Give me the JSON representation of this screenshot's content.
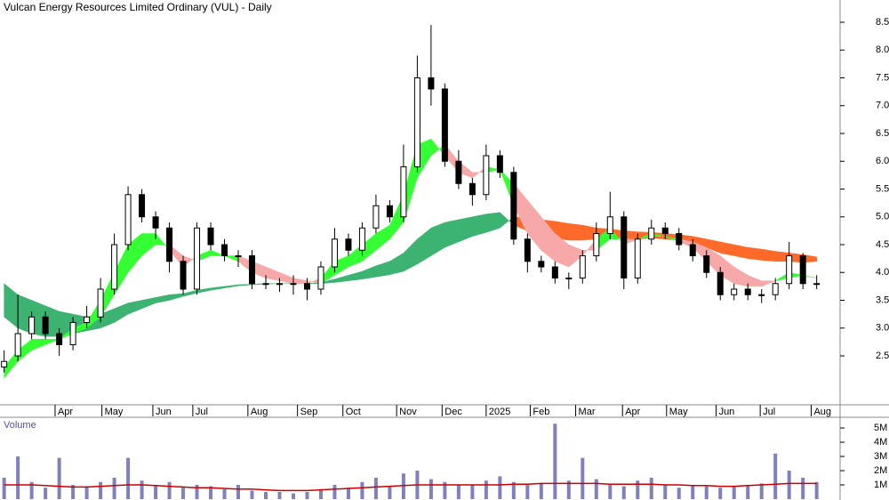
{
  "chart_data": [
    {
      "type": "candlestick",
      "title": "Vulcan Energy Resources Limited Ordinary (VUL) - Daily",
      "xlim": [
        -0.3,
        60.7
      ],
      "ylim": [
        1.62,
        8.9
      ],
      "xticks": [
        {
          "value": 3.7,
          "label": "Apr"
        },
        {
          "value": 7.1,
          "label": "May"
        },
        {
          "value": 10.8,
          "label": "Jun"
        },
        {
          "value": 13.7,
          "label": "Jul"
        },
        {
          "value": 17.7,
          "label": "Aug"
        },
        {
          "value": 21.3,
          "label": "Sep"
        },
        {
          "value": 24.6,
          "label": "Oct"
        },
        {
          "value": 28.5,
          "label": "Nov"
        },
        {
          "value": 31.8,
          "label": "Dec"
        },
        {
          "value": 35,
          "label": "2025"
        },
        {
          "value": 38.2,
          "label": "Feb"
        },
        {
          "value": 41.5,
          "label": "Mar"
        },
        {
          "value": 44.9,
          "label": "Apr"
        },
        {
          "value": 48.1,
          "label": "May"
        },
        {
          "value": 51.7,
          "label": "Jun"
        },
        {
          "value": 54.9,
          "label": "Jul"
        },
        {
          "value": 58.6,
          "label": "Aug"
        }
      ],
      "yticks": [
        2.5,
        {
          "value": 3,
          "label": "3.0"
        },
        3.5,
        {
          "value": 4,
          "label": "4.0"
        },
        4.5,
        {
          "value": 5,
          "label": "5.0"
        },
        5.5,
        {
          "value": 6,
          "label": "6.0"
        },
        6.5,
        {
          "value": 7,
          "label": "7.0"
        },
        7.5,
        {
          "value": 8,
          "label": "8.0"
        },
        8.5
      ],
      "up_color": "#ffffff",
      "down_color": "#000000",
      "open": [
        2.3,
        2.5,
        2.9,
        3.2,
        2.9,
        2.7,
        3.1,
        3.2,
        3.7,
        4.5,
        5.4,
        5.0,
        4.8,
        4.2,
        3.7,
        4.8,
        4.5,
        4.3,
        4.3,
        3.8,
        3.8,
        3.8,
        3.8,
        3.7,
        4.1,
        4.6,
        4.4,
        4.8,
        5.2,
        5.0,
        5.9,
        7.5,
        7.3,
        6.0,
        5.6,
        5.4,
        6.1,
        5.8,
        4.6,
        4.2,
        4.1,
        3.9,
        3.9,
        4.3,
        4.7,
        5.0,
        3.9,
        4.6,
        4.8,
        4.7,
        4.5,
        4.3,
        4.0,
        3.6,
        3.7,
        3.6,
        3.6,
        3.8,
        4.3,
        3.8
      ],
      "high": [
        2.6,
        3.6,
        3.3,
        3.3,
        3.0,
        3.2,
        3.4,
        3.9,
        4.7,
        5.55,
        5.5,
        5.1,
        4.9,
        4.3,
        4.9,
        4.9,
        4.6,
        4.4,
        4.4,
        3.95,
        3.9,
        3.95,
        3.9,
        4.2,
        4.8,
        4.7,
        4.9,
        5.4,
        5.3,
        6.3,
        7.9,
        8.45,
        7.4,
        6.2,
        5.7,
        6.3,
        6.2,
        5.9,
        4.7,
        4.3,
        4.2,
        4.0,
        4.4,
        4.9,
        5.45,
        5.1,
        4.7,
        4.95,
        4.9,
        4.8,
        4.6,
        4.4,
        4.1,
        3.8,
        3.8,
        3.7,
        3.9,
        4.55,
        4.35,
        3.95
      ],
      "low": [
        2.2,
        2.4,
        2.8,
        2.8,
        2.5,
        2.6,
        3.0,
        3.1,
        3.6,
        4.4,
        4.9,
        4.6,
        4.0,
        3.6,
        3.6,
        4.4,
        4.2,
        4.1,
        3.7,
        3.7,
        3.65,
        3.6,
        3.5,
        3.6,
        4.0,
        4.3,
        4.3,
        4.7,
        4.9,
        4.9,
        5.8,
        7.0,
        5.9,
        5.5,
        5.2,
        5.3,
        5.7,
        4.5,
        4.0,
        4.0,
        3.8,
        3.7,
        3.8,
        4.2,
        4.6,
        3.7,
        3.8,
        4.5,
        4.6,
        4.4,
        4.2,
        3.9,
        3.5,
        3.5,
        3.5,
        3.45,
        3.5,
        3.7,
        3.7,
        3.7
      ],
      "close": [
        2.4,
        2.9,
        3.2,
        2.9,
        2.7,
        3.1,
        3.2,
        3.7,
        4.5,
        5.4,
        5.0,
        4.8,
        4.2,
        3.7,
        4.8,
        4.5,
        4.3,
        4.3,
        3.8,
        3.8,
        3.8,
        3.8,
        3.7,
        4.1,
        4.6,
        4.4,
        4.8,
        5.2,
        5.0,
        5.9,
        7.5,
        7.3,
        6.0,
        5.6,
        5.4,
        6.1,
        5.8,
        4.6,
        4.2,
        4.1,
        3.9,
        3.9,
        4.3,
        4.7,
        5.0,
        3.9,
        4.6,
        4.8,
        4.7,
        4.5,
        4.3,
        4.0,
        3.6,
        3.7,
        3.6,
        3.6,
        3.8,
        4.3,
        3.8,
        3.8
      ],
      "ribbons": [
        {
          "up_color": "#3cb371",
          "down_color": "#ff6a2a",
          "fast": [
            3.8,
            3.6,
            3.5,
            3.4,
            3.3,
            3.25,
            3.2,
            3.25,
            3.35,
            3.45,
            3.5,
            3.55,
            3.6,
            3.62,
            3.68,
            3.72,
            3.75,
            3.78,
            3.79,
            3.8,
            3.8,
            3.8,
            3.8,
            3.82,
            3.88,
            3.95,
            4.02,
            4.12,
            4.2,
            4.35,
            4.6,
            4.8,
            4.9,
            4.95,
            5.0,
            5.05,
            5.08,
            4.85,
            4.75,
            4.68,
            4.62,
            4.58,
            4.58,
            4.6,
            4.65,
            4.6,
            4.6,
            4.62,
            4.6,
            4.58,
            4.52,
            4.45,
            4.35,
            4.3,
            4.25,
            4.22,
            4.2,
            4.2,
            4.18,
            4.2
          ],
          "slow": [
            3.2,
            3.0,
            2.9,
            2.85,
            2.85,
            2.9,
            2.95,
            3.0,
            3.1,
            3.25,
            3.35,
            3.45,
            3.5,
            3.57,
            3.63,
            3.68,
            3.72,
            3.76,
            3.78,
            3.79,
            3.8,
            3.8,
            3.8,
            3.8,
            3.82,
            3.85,
            3.88,
            3.92,
            3.96,
            4.02,
            4.15,
            4.3,
            4.45,
            4.55,
            4.65,
            4.72,
            4.8,
            5.0,
            4.98,
            4.95,
            4.92,
            4.88,
            4.85,
            4.8,
            4.78,
            4.75,
            4.73,
            4.72,
            4.7,
            4.68,
            4.65,
            4.6,
            4.55,
            4.5,
            4.45,
            4.42,
            4.38,
            4.35,
            4.32,
            4.28
          ]
        },
        {
          "up_color": "#33ff33",
          "down_color": "#f7a8a8",
          "fast": [
            2.3,
            2.6,
            2.8,
            2.8,
            2.8,
            3.0,
            3.1,
            3.5,
            4.0,
            4.5,
            4.7,
            4.7,
            4.4,
            4.1,
            4.3,
            4.4,
            4.3,
            4.2,
            4.0,
            3.9,
            3.85,
            3.8,
            3.8,
            3.9,
            4.2,
            4.3,
            4.5,
            4.7,
            4.85,
            5.4,
            6.3,
            6.4,
            6.1,
            5.8,
            5.7,
            5.9,
            5.85,
            5.2,
            4.7,
            4.4,
            4.2,
            4.1,
            4.3,
            4.6,
            4.8,
            4.5,
            4.6,
            4.7,
            4.65,
            4.55,
            4.45,
            4.2,
            3.95,
            3.8,
            3.75,
            3.75,
            3.85,
            4.0,
            3.95,
            3.9
          ],
          "slow": [
            2.1,
            2.4,
            2.6,
            2.7,
            2.8,
            2.9,
            3.0,
            3.2,
            3.6,
            4.0,
            4.3,
            4.5,
            4.5,
            4.3,
            4.2,
            4.3,
            4.3,
            4.3,
            4.2,
            4.1,
            4.0,
            3.9,
            3.85,
            3.8,
            3.95,
            4.1,
            4.2,
            4.4,
            4.6,
            4.9,
            5.7,
            6.1,
            6.3,
            6.0,
            5.8,
            5.8,
            5.85,
            5.6,
            5.3,
            5.0,
            4.7,
            4.5,
            4.4,
            4.4,
            4.6,
            4.6,
            4.6,
            4.65,
            4.65,
            4.6,
            4.55,
            4.45,
            4.3,
            4.1,
            3.95,
            3.85,
            3.85,
            3.9,
            3.95,
            3.9
          ]
        }
      ]
    },
    {
      "type": "volume",
      "title": "Volume",
      "color": "#8080c0",
      "ma_color": "#cc0000",
      "ylim": [
        0,
        5.69
      ],
      "yticks": [
        {
          "value": 1,
          "label": "1M"
        },
        {
          "value": 2,
          "label": "2M"
        },
        {
          "value": 3,
          "label": "3M"
        },
        {
          "value": 4,
          "label": "4M"
        },
        {
          "value": 5,
          "label": "5M"
        }
      ],
      "values": [
        1.5,
        3.0,
        1.2,
        0.8,
        2.9,
        1.0,
        0.9,
        1.2,
        1.5,
        2.9,
        1.3,
        1.0,
        1.2,
        0.8,
        1.0,
        0.9,
        0.7,
        1.0,
        0.6,
        0.5,
        0.5,
        0.4,
        0.5,
        0.7,
        1.0,
        0.8,
        1.2,
        1.5,
        0.9,
        1.8,
        2.0,
        1.4,
        1.2,
        1.0,
        1.0,
        1.3,
        1.6,
        1.2,
        1.0,
        1.1,
        5.3,
        1.3,
        2.9,
        1.4,
        1.0,
        0.9,
        1.3,
        1.5,
        1.0,
        0.8,
        1.0,
        0.9,
        0.8,
        0.9,
        1.0,
        1.1,
        3.2,
        2.0,
        1.5,
        1.2
      ],
      "ma": [
        1.0,
        1.0,
        1.0,
        0.95,
        0.9,
        0.85,
        0.85,
        0.9,
        0.95,
        1.0,
        1.0,
        0.95,
        0.9,
        0.85,
        0.8,
        0.8,
        0.75,
        0.7,
        0.7,
        0.65,
        0.6,
        0.6,
        0.6,
        0.65,
        0.7,
        0.75,
        0.8,
        0.85,
        0.9,
        0.95,
        1.0,
        1.0,
        1.0,
        1.0,
        1.0,
        1.0,
        1.0,
        1.05,
        1.05,
        1.1,
        1.1,
        1.1,
        1.1,
        1.1,
        1.05,
        1.05,
        1.05,
        1.05,
        1.0,
        1.0,
        0.95,
        0.95,
        0.9,
        0.9,
        0.95,
        1.0,
        1.05,
        1.1,
        1.1,
        1.1
      ]
    }
  ]
}
